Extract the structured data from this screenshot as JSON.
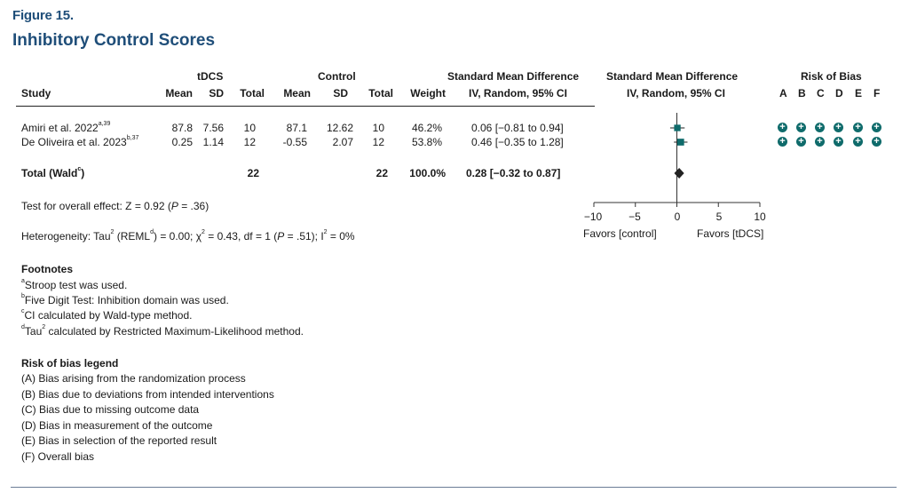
{
  "figure": {
    "label": "Figure 15.",
    "title": "Inhibitory Control Scores"
  },
  "headers": {
    "group_tdcs": "tDCS",
    "group_control": "Control",
    "smd_top": "Standard Mean Difference",
    "smd_bottom": "IV, Random, 95% CI",
    "plot_top": "Standard Mean Difference",
    "plot_bottom": "IV, Random, 95% CI",
    "rob_top": "Risk of Bias",
    "study": "Study",
    "mean1": "Mean",
    "sd1": "SD",
    "total1": "Total",
    "mean2": "Mean",
    "sd2": "SD",
    "total2": "Total",
    "weight": "Weight",
    "rob_cols": [
      "A",
      "B",
      "C",
      "D",
      "E",
      "F"
    ]
  },
  "studies": [
    {
      "name": "Amiri et al. 2022",
      "sup": "a,39",
      "mean1": "87.8",
      "sd1": "7.56",
      "total1": "10",
      "mean2": "87.1",
      "sd2": "12.62",
      "total2": "10",
      "weight": "46.2%",
      "ci": "0.06 [−0.81 to 0.94]",
      "rob": [
        "+",
        "+",
        "+",
        "+",
        "+",
        "+"
      ]
    },
    {
      "name": "De Oliveira et al. 2023",
      "sup": "b,37",
      "mean1": "0.25",
      "sd1": "1.14",
      "total1": "12",
      "mean2": "-0.55",
      "sd2": "2.07",
      "total2": "12",
      "weight": "53.8%",
      "ci": "0.46 [−0.35 to 1.28]",
      "rob": [
        "+",
        "+",
        "+",
        "+",
        "+",
        "+"
      ]
    }
  ],
  "total": {
    "label": "Total (Wald",
    "sup": "c",
    "label_end": ")",
    "total1": "22",
    "total2": "22",
    "weight": "100.0%",
    "ci": "0.28 [−0.32 to 0.87]"
  },
  "overall_effect": {
    "pre": "Test for overall effect: Z = 0.92 (",
    "p": "P",
    "post": " = .36)"
  },
  "heterogeneity": {
    "pre": "Heterogeneity: Tau",
    "sq": "2",
    "mid1": " (REML",
    "sup": "d",
    "mid2": ") = 0.00; χ",
    "sq2": "2",
    "mid3": " = 0.43, df = 1 (",
    "p": "P",
    "mid4": " = .51); I",
    "sq3": "2",
    "end": " = 0%"
  },
  "axis": {
    "ticks": [
      "−10",
      "−5",
      "0",
      "5",
      "10"
    ],
    "favors_left": "Favors [control]",
    "favors_right": "Favors [tDCS]"
  },
  "footnotes": {
    "title": "Footnotes",
    "items": [
      {
        "sup": "a",
        "text": "Stroop test was used."
      },
      {
        "sup": "b",
        "text": "Five Digit Test: Inhibition domain was used."
      },
      {
        "sup": "c",
        "text": "CI calculated by Wald-type method."
      },
      {
        "sup": "d",
        "text": "Tau",
        "sq": "2",
        "rest": " calculated by Restricted Maximum-Likelihood method."
      }
    ]
  },
  "rob_legend": {
    "title": "Risk of bias legend",
    "items": [
      "(A) Bias arising from the randomization process",
      "(B) Bias due to deviations from intended interventions",
      "(C) Bias due to missing outcome data",
      "(D) Bias in measurement of the outcome",
      "(E) Bias in selection of the reported result",
      "(F) Overall bias"
    ]
  },
  "colors": {
    "title": "#1f4e79",
    "marker": "#0f6b6b",
    "rob": "#0f6b6b",
    "rule": "#6b7d96"
  },
  "chart_data": {
    "type": "forest",
    "xlim": [
      -10,
      10
    ],
    "xticks": [
      -10,
      -5,
      0,
      5,
      10
    ],
    "studies": [
      {
        "name": "Amiri et al. 2022",
        "estimate": 0.06,
        "lower": -0.81,
        "upper": 0.94,
        "weight": 46.2
      },
      {
        "name": "De Oliveira et al. 2023",
        "estimate": 0.46,
        "lower": -0.35,
        "upper": 1.28,
        "weight": 53.8
      }
    ],
    "pooled": {
      "estimate": 0.28,
      "lower": -0.32,
      "upper": 0.87
    }
  }
}
